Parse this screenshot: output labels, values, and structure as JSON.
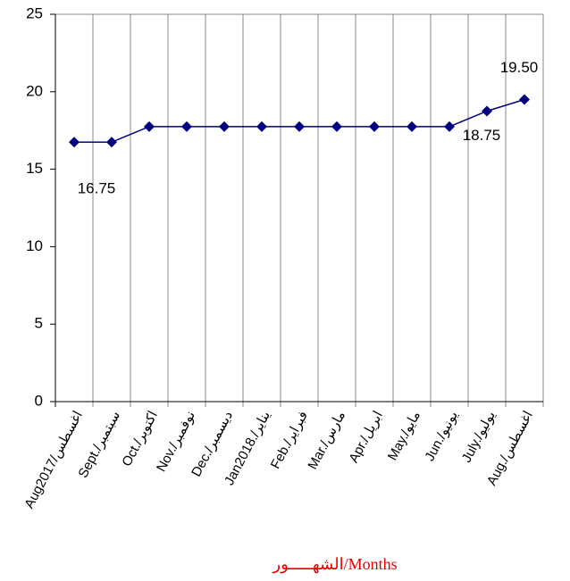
{
  "chart_data": {
    "type": "line",
    "categories": [
      "Aug2017/اغسطس",
      "Sept./سبتمبر",
      "Oct./اكتوبر",
      "Nov./نوفمبر",
      "Dec./ديسمبر",
      "Jan2018./يناير",
      "Feb./فبراير",
      "Mar./مارس",
      "Apr./ابريل",
      "May./مايو",
      "Jun./يونيو",
      "July./يوليو",
      "Aug./اغسطس"
    ],
    "values": [
      16.75,
      16.75,
      17.75,
      17.75,
      17.75,
      17.75,
      17.75,
      17.75,
      17.75,
      17.75,
      17.75,
      18.75,
      19.5
    ],
    "value_labels": [
      "16.75",
      null,
      null,
      null,
      null,
      null,
      null,
      null,
      null,
      null,
      null,
      "18.75",
      "19.50"
    ],
    "color": "#000080",
    "x_label": "الشهـــــور/Months",
    "ylim": [
      0,
      25
    ],
    "yticks": [
      0,
      5,
      10,
      15,
      20,
      25
    ]
  }
}
